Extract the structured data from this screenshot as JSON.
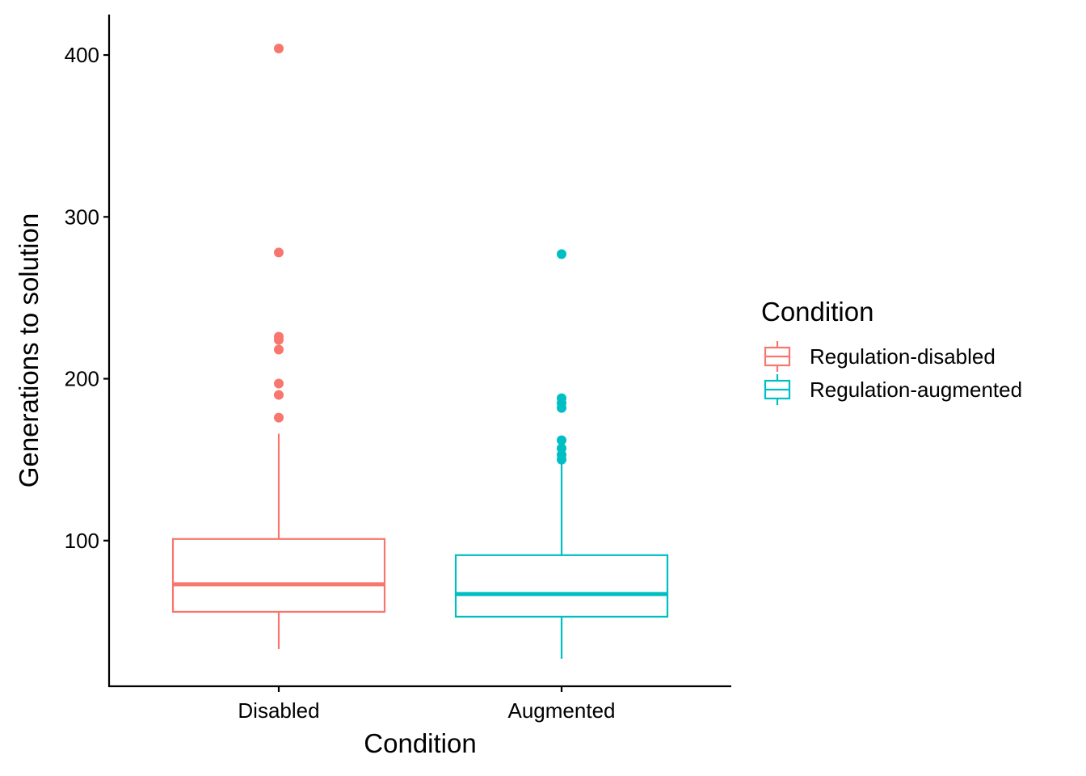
{
  "colors": {
    "Regulation-disabled": "#F8766D",
    "Regulation-augmented": "#00BFC4",
    "axis": "#000000"
  },
  "chart_data": {
    "type": "box",
    "xlabel": "Condition",
    "ylabel": "Generations to solution",
    "ylim": [
      10,
      425
    ],
    "yticks": [
      100,
      200,
      300,
      400
    ],
    "grid": false,
    "legend": {
      "title": "Condition",
      "position": "right",
      "entries": [
        "Regulation-disabled",
        "Regulation-augmented"
      ]
    },
    "categories": [
      "Disabled",
      "Augmented"
    ],
    "series": [
      {
        "name": "Regulation-disabled",
        "category": "Disabled",
        "whisker_low": 33,
        "q1": 56,
        "median": 73,
        "q3": 101,
        "whisker_high": 166,
        "outliers": [
          176,
          190,
          197,
          218,
          224,
          226,
          278,
          404
        ]
      },
      {
        "name": "Regulation-augmented",
        "category": "Augmented",
        "whisker_low": 27,
        "q1": 53,
        "median": 67,
        "q3": 91,
        "whisker_high": 149,
        "outliers": [
          150,
          153,
          157,
          162,
          182,
          185,
          188,
          277
        ]
      }
    ]
  }
}
